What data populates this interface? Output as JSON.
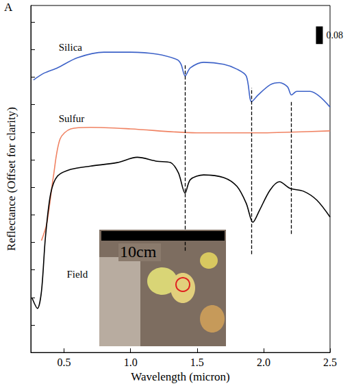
{
  "chart_data": {
    "type": "line",
    "panel_label": "A",
    "x_label": "Wavelength (micron)",
    "y_label": "Reflectance (Offset for clarity)",
    "xlim": [
      0.25,
      2.5
    ],
    "xticks": [
      0.5,
      {
        "value": 1,
        "label": "1.0"
      },
      1.5,
      {
        "value": 2,
        "label": "2.0"
      },
      2.5
    ],
    "ylim": [
      0,
      1.575
    ],
    "yticks": [
      0,
      0.125,
      0.25,
      0.375,
      0.5,
      0.625,
      0.75,
      0.875,
      1,
      1.125,
      1.25,
      1.375,
      1.5
    ],
    "tick_labels": "x",
    "grid": false,
    "series": [
      {
        "name": "Silica",
        "color": "#3d62c8",
        "label_at": [
          0.46,
          1.385
        ],
        "x": [
          0.27,
          0.35,
          0.45,
          0.6,
          0.8,
          1.0,
          1.2,
          1.35,
          1.38,
          1.41,
          1.45,
          1.55,
          1.7,
          1.8,
          1.87,
          1.91,
          1.96,
          2.05,
          2.12,
          2.18,
          2.21,
          2.25,
          2.35,
          2.42,
          2.5
        ],
        "values": [
          1.237,
          1.268,
          1.292,
          1.338,
          1.363,
          1.363,
          1.354,
          1.329,
          1.308,
          1.255,
          1.292,
          1.317,
          1.308,
          1.286,
          1.255,
          1.138,
          1.169,
          1.215,
          1.225,
          1.206,
          1.169,
          1.185,
          1.185,
          1.163,
          1.114
        ]
      },
      {
        "name": "Sulfur",
        "color": "#f08262",
        "label_at": [
          0.46,
          1.062
        ],
        "x": [
          0.33,
          0.37,
          0.42,
          0.47,
          0.55,
          0.7,
          1.0,
          1.5,
          2.0,
          2.2,
          2.5
        ],
        "values": [
          0.508,
          0.585,
          0.8,
          0.969,
          1.015,
          1.022,
          1.015,
          0.997,
          0.997,
          1.0,
          1.006
        ]
      },
      {
        "name": "Field",
        "color": "#000000",
        "label_at": [
          0.52,
          0.354
        ],
        "x": [
          0.26,
          0.3,
          0.33,
          0.36,
          0.4,
          0.45,
          0.55,
          0.7,
          0.9,
          1.05,
          1.2,
          1.3,
          1.36,
          1.41,
          1.45,
          1.55,
          1.7,
          1.8,
          1.87,
          1.92,
          1.97,
          2.05,
          2.12,
          2.2,
          2.3,
          2.4,
          2.5
        ],
        "values": [
          0.246,
          0.2,
          0.277,
          0.523,
          0.723,
          0.8,
          0.831,
          0.846,
          0.862,
          0.886,
          0.868,
          0.862,
          0.815,
          0.723,
          0.785,
          0.806,
          0.794,
          0.754,
          0.677,
          0.591,
          0.646,
          0.738,
          0.775,
          0.745,
          0.732,
          0.692,
          0.615
        ]
      }
    ],
    "dashed_lines": [
      {
        "x": 1.41,
        "y_range": [
          0.462,
          1.308
        ]
      },
      {
        "x": 1.91,
        "y_range": [
          0.446,
          1.2
        ]
      },
      {
        "x": 2.21,
        "y_range": [
          0.538,
          1.138
        ]
      }
    ],
    "scale_bar": {
      "x": 2.42,
      "y": 1.4,
      "height": 0.08
    },
    "inset_label": "10cm"
  }
}
